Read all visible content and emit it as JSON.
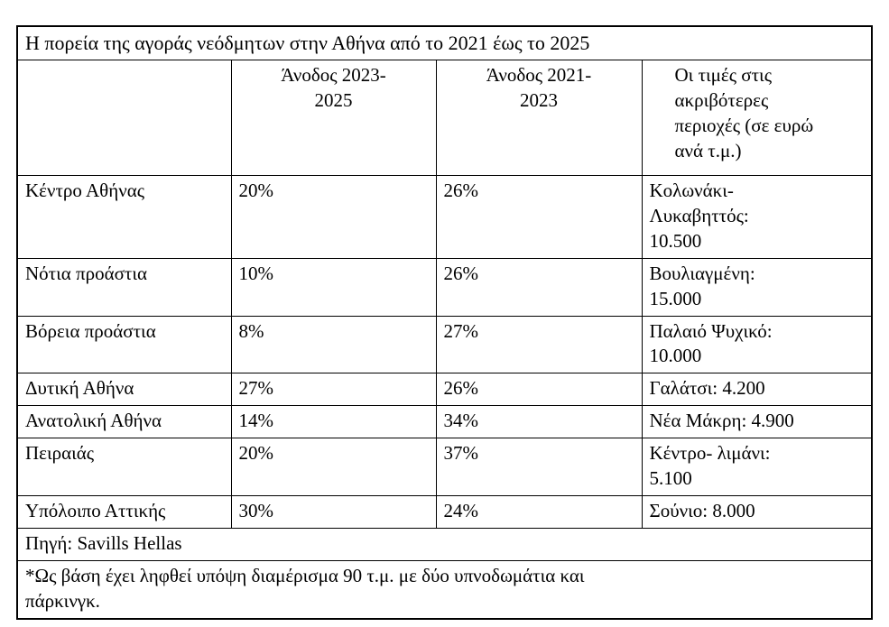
{
  "chart_data": {
    "type": "table",
    "title": "Η πορεία της αγοράς νεόδμητων στην Αθήνα από το 2021 έως το 2025",
    "columns": [
      "",
      "Άνοδος 2023-\n2025",
      "Άνοδος 2021-\n2023",
      "Οι τιμές στις\nακριβότερες\nπεριοχές (σε ευρώ\nανά τ.μ.)"
    ],
    "rows": [
      [
        "Κέντρο Αθήνας",
        "20%",
        "26%",
        "Κολωνάκι-\nΛυκαβηττός:\n10.500"
      ],
      [
        "Νότια προάστια",
        "10%",
        "26%",
        "Βουλιαγμένη:\n15.000"
      ],
      [
        "Βόρεια προάστια",
        "8%",
        "27%",
        "Παλαιό Ψυχικό:\n10.000"
      ],
      [
        "Δυτική Αθήνα",
        "27%",
        "26%",
        "Γαλάτσι: 4.200"
      ],
      [
        "Ανατολική Αθήνα",
        "14%",
        "34%",
        "Νέα Μάκρη: 4.900"
      ],
      [
        "Πειραιάς",
        "20%",
        "37%",
        "Κέντρο- λιμάνι:\n5.100"
      ],
      [
        "Υπόλοιπο Αττικής",
        "30%",
        "24%",
        "Σούνιο: 8.000"
      ]
    ],
    "categories": [
      "Κέντρο Αθήνας",
      "Νότια προάστια",
      "Βόρεια προάστια",
      "Δυτική Αθήνα",
      "Ανατολική Αθήνα",
      "Πειραιάς",
      "Υπόλοιπο Αττικής"
    ],
    "series": [
      {
        "name": "Άνοδος 2023-2025 (%)",
        "values": [
          20,
          10,
          8,
          27,
          14,
          20,
          30
        ]
      },
      {
        "name": "Άνοδος 2021-2023 (%)",
        "values": [
          26,
          26,
          27,
          26,
          34,
          37,
          24
        ]
      },
      {
        "name": "Οι τιμές στις ακριβότερες περιοχές (σε ευρώ ανά τ.μ.)",
        "values": [
          "Κολωνάκι-Λυκαβηττός: 10.500",
          "Βουλιαγμένη: 15.000",
          "Παλαιό Ψυχικό: 10.000",
          "Γαλάτσι: 4.200",
          "Νέα Μάκρη: 4.900",
          "Κέντρο- λιμάνι: 5.100",
          "Σούνιο: 8.000"
        ]
      }
    ],
    "source": "Πηγή: Savills Hellas",
    "footnote": "*Ως βάση έχει ληφθεί υπόψη διαμέρισμα 90 τ.μ. με δύο υπνοδωμάτια και\nπάρκινγκ."
  },
  "colors": {
    "background": "#ffffff",
    "border": "#000000",
    "text": "#000000"
  }
}
